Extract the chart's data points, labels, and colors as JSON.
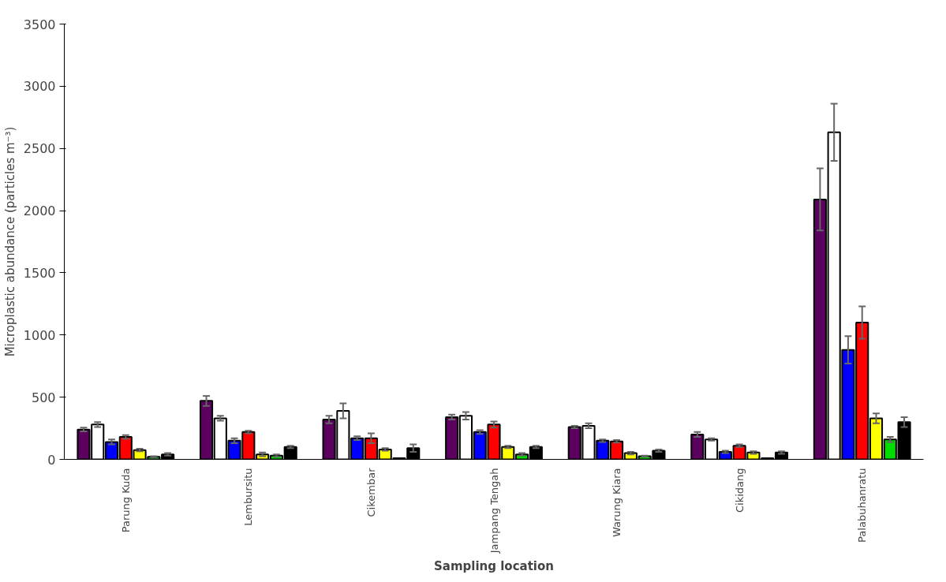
{
  "chart_data": {
    "type": "bar",
    "xlabel": "Sampling location",
    "ylabel": "Microplastic abundance (particles m⁻³)",
    "categories": [
      "Parung Kuda",
      "Lembursitu",
      "Cikembar",
      "Jampang Tengah",
      "Warung Kiara",
      "Cikidang",
      "Palabuhanratu"
    ],
    "ylim": [
      0,
      3500
    ],
    "yticks": [
      0,
      500,
      1000,
      1500,
      2000,
      2500,
      3000,
      3500
    ],
    "grid": false,
    "series": [
      {
        "color": "#5c0060",
        "values": [
          240,
          470,
          320,
          340,
          260,
          200,
          2090
        ],
        "errors": [
          15,
          40,
          30,
          20,
          10,
          20,
          250
        ]
      },
      {
        "color": "#ffffff",
        "values": [
          280,
          330,
          390,
          350,
          270,
          160,
          2630
        ],
        "errors": [
          20,
          20,
          60,
          30,
          20,
          10,
          230
        ]
      },
      {
        "color": "#0000ff",
        "values": [
          140,
          150,
          170,
          220,
          150,
          60,
          880
        ],
        "errors": [
          20,
          20,
          15,
          15,
          10,
          10,
          110
        ]
      },
      {
        "color": "#ff0000",
        "values": [
          180,
          220,
          170,
          280,
          145,
          110,
          1100
        ],
        "errors": [
          15,
          10,
          40,
          25,
          10,
          10,
          130
        ]
      },
      {
        "color": "#ffff00",
        "values": [
          75,
          40,
          80,
          100,
          50,
          55,
          330
        ],
        "errors": [
          10,
          15,
          10,
          10,
          10,
          10,
          40
        ]
      },
      {
        "color": "#00dd00",
        "values": [
          20,
          30,
          10,
          40,
          25,
          10,
          160
        ],
        "errors": [
          5,
          10,
          null,
          10,
          5,
          null,
          20
        ]
      },
      {
        "color": "#000000",
        "values": [
          40,
          100,
          90,
          100,
          70,
          55,
          300
        ],
        "errors": [
          10,
          10,
          30,
          10,
          10,
          10,
          40
        ]
      }
    ]
  }
}
